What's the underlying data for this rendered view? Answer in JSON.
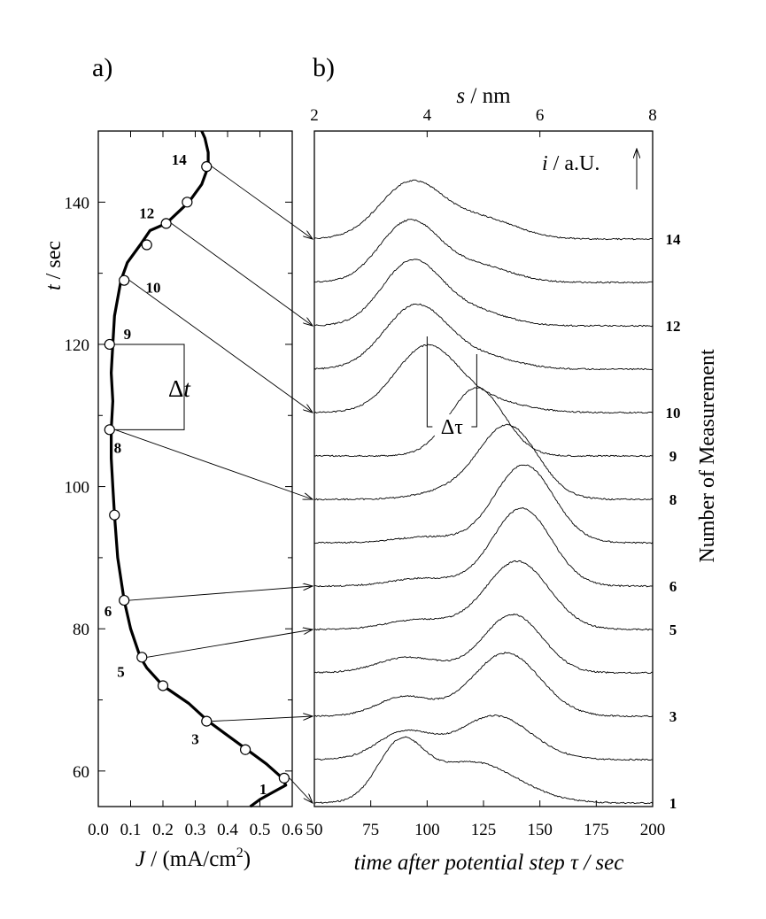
{
  "chart_data": [
    {
      "panel_label": "a)",
      "type": "line",
      "xlabel_italic": "J",
      "xlabel_rest": " / (mA/cm",
      "xlabel_sup": "2",
      "xlabel_close": ")",
      "ylabel_italic": "t",
      "ylabel_rest": " / sec",
      "xlim": [
        0.0,
        0.6
      ],
      "ylim": [
        55,
        150
      ],
      "xticks": [
        0.0,
        0.1,
        0.2,
        0.3,
        0.4,
        0.5,
        0.6
      ],
      "xtick_labels": [
        "0.0",
        "0.1",
        "0.2",
        "0.3",
        "0.4",
        "0.5",
        "0.6"
      ],
      "yticks": [
        60,
        80,
        100,
        120,
        140
      ],
      "ytick_labels": [
        "60",
        "80",
        "100",
        "120",
        "140"
      ],
      "curve": {
        "x": [
          0.47,
          0.5,
          0.54,
          0.56,
          0.58,
          0.57,
          0.52,
          0.46,
          0.4,
          0.34,
          0.28,
          0.2,
          0.15,
          0.13,
          0.1,
          0.08,
          0.06,
          0.05,
          0.045,
          0.04,
          0.04,
          0.045,
          0.04,
          0.045,
          0.05,
          0.07,
          0.09,
          0.13,
          0.16,
          0.21,
          0.28,
          0.32,
          0.34,
          0.34,
          0.33,
          0.32
        ],
        "y": [
          55,
          56,
          57,
          57.5,
          58,
          59,
          61,
          63,
          65,
          67,
          69.5,
          72,
          74.5,
          76,
          80,
          84,
          90,
          96,
          100,
          104,
          108,
          112,
          116,
          120,
          124,
          129,
          131.5,
          134,
          136,
          137,
          140,
          142.5,
          145,
          147,
          149,
          150
        ]
      },
      "markers": {
        "x": [
          0.575,
          0.455,
          0.335,
          0.2,
          0.135,
          0.08,
          0.05,
          0.035,
          0.035,
          0.08,
          0.15,
          0.21,
          0.275,
          0.335
        ],
        "y": [
          59,
          63,
          67,
          72,
          76,
          84,
          96,
          108,
          120,
          129,
          134,
          137,
          140,
          145
        ]
      },
      "marker_labels": [
        {
          "text": "1",
          "x": 0.51,
          "y": 57.5
        },
        {
          "text": "3",
          "x": 0.3,
          "y": 64.5
        },
        {
          "text": "5",
          "x": 0.07,
          "y": 74
        },
        {
          "text": "6",
          "x": 0.03,
          "y": 82.5
        },
        {
          "text": "8",
          "x": 0.06,
          "y": 105.5
        },
        {
          "text": "9",
          "x": 0.09,
          "y": 121.5
        },
        {
          "text": "10",
          "x": 0.17,
          "y": 128
        },
        {
          "text": "12",
          "x": 0.15,
          "y": 138.5
        },
        {
          "text": "14",
          "x": 0.25,
          "y": 146
        }
      ],
      "delta_t": {
        "label": "Δt",
        "italic_part": "t",
        "from_y": 108,
        "to_y": 120
      }
    },
    {
      "panel_label": "b)",
      "type": "line",
      "xlabel": "time after potential step τ / sec",
      "top_xlabel_italic": "s",
      "top_xlabel_rest": " / nm",
      "ylabel_right": "Number of Measurement",
      "intensity_label_italic": "i",
      "intensity_label_rest": " / a.U.",
      "xlim": [
        50,
        200
      ],
      "xticks": [
        50,
        75,
        100,
        125,
        150,
        175,
        200
      ],
      "xtick_labels": [
        "50",
        "75",
        "100",
        "125",
        "150",
        "175",
        "200"
      ],
      "top_xticks": [
        2,
        4,
        6,
        8
      ],
      "top_xtick_labels": [
        "2",
        "4",
        "6",
        "8"
      ],
      "right_labels": [
        "1",
        "3",
        "5",
        "6",
        "8",
        "9",
        "10",
        "12",
        "14"
      ],
      "series": [
        {
          "measurement": 1,
          "baseline": 0.5,
          "peaks": [
            {
              "c": 88,
              "a": 5.5,
              "w": 10
            },
            {
              "c": 120,
              "a": 4.2,
              "w": 20
            }
          ]
        },
        {
          "measurement": 2,
          "baseline": 1.5,
          "peaks": [
            {
              "c": 90,
              "a": 2.8,
              "w": 12
            },
            {
              "c": 130,
              "a": 4.5,
              "w": 16
            }
          ]
        },
        {
          "measurement": 3,
          "baseline": 2.5,
          "peaks": [
            {
              "c": 90,
              "a": 2.0,
              "w": 12
            },
            {
              "c": 135,
              "a": 6.5,
              "w": 15
            }
          ]
        },
        {
          "measurement": 4,
          "baseline": 3.5,
          "peaks": [
            {
              "c": 92,
              "a": 1.6,
              "w": 14
            },
            {
              "c": 138,
              "a": 6.0,
              "w": 13
            }
          ]
        },
        {
          "measurement": 5,
          "baseline": 4.5,
          "peaks": [
            {
              "c": 96,
              "a": 1.0,
              "w": 14
            },
            {
              "c": 140,
              "a": 7.0,
              "w": 14
            }
          ]
        },
        {
          "measurement": 6,
          "baseline": 5.5,
          "peaks": [
            {
              "c": 98,
              "a": 0.8,
              "w": 14
            },
            {
              "c": 142,
              "a": 8.0,
              "w": 13
            }
          ]
        },
        {
          "measurement": 7,
          "baseline": 6.5,
          "peaks": [
            {
              "c": 100,
              "a": 0.6,
              "w": 14
            },
            {
              "c": 143,
              "a": 8.0,
              "w": 13
            }
          ]
        },
        {
          "measurement": 8,
          "baseline": 7.5,
          "peaks": [
            {
              "c": 110,
              "a": 0.8,
              "w": 14
            },
            {
              "c": 136,
              "a": 7.5,
              "w": 13
            }
          ]
        },
        {
          "measurement": 9,
          "baseline": 8.5,
          "peaks": [
            {
              "c": 122,
              "a": 7.0,
              "w": 12
            }
          ]
        },
        {
          "measurement": 10,
          "baseline": 9.5,
          "peaks": [
            {
              "c": 100,
              "a": 6.8,
              "w": 14
            },
            {
              "c": 130,
              "a": 1.0,
              "w": 15
            }
          ]
        },
        {
          "measurement": 11,
          "baseline": 10.5,
          "peaks": [
            {
              "c": 95,
              "a": 6.5,
              "w": 14
            },
            {
              "c": 125,
              "a": 1.2,
              "w": 15
            }
          ]
        },
        {
          "measurement": 12,
          "baseline": 11.5,
          "peaks": [
            {
              "c": 93,
              "a": 6.5,
              "w": 13
            },
            {
              "c": 120,
              "a": 1.5,
              "w": 15
            }
          ]
        },
        {
          "measurement": 13,
          "baseline": 12.5,
          "peaks": [
            {
              "c": 92,
              "a": 6.2,
              "w": 13
            },
            {
              "c": 122,
              "a": 1.7,
              "w": 15
            }
          ]
        },
        {
          "measurement": 14,
          "baseline": 13.5,
          "peaks": [
            {
              "c": 93,
              "a": 5.8,
              "w": 14
            },
            {
              "c": 125,
              "a": 2.0,
              "w": 15
            }
          ]
        }
      ],
      "delta_tau": {
        "label": "Δτ",
        "from_x": 100,
        "to_x": 122
      }
    }
  ],
  "arrows": [
    {
      "from_measurement": 14,
      "to_measurement": 14
    },
    {
      "from_measurement": 12,
      "to_measurement": 12
    },
    {
      "from_measurement": 10,
      "to_measurement": 10
    },
    {
      "from_measurement": 8,
      "to_measurement": 8
    },
    {
      "from_measurement": 6,
      "to_measurement": 6
    },
    {
      "from_measurement": 5,
      "to_measurement": 5
    },
    {
      "from_measurement": 3,
      "to_measurement": 3
    },
    {
      "from_measurement": 1,
      "to_measurement": 1
    }
  ]
}
